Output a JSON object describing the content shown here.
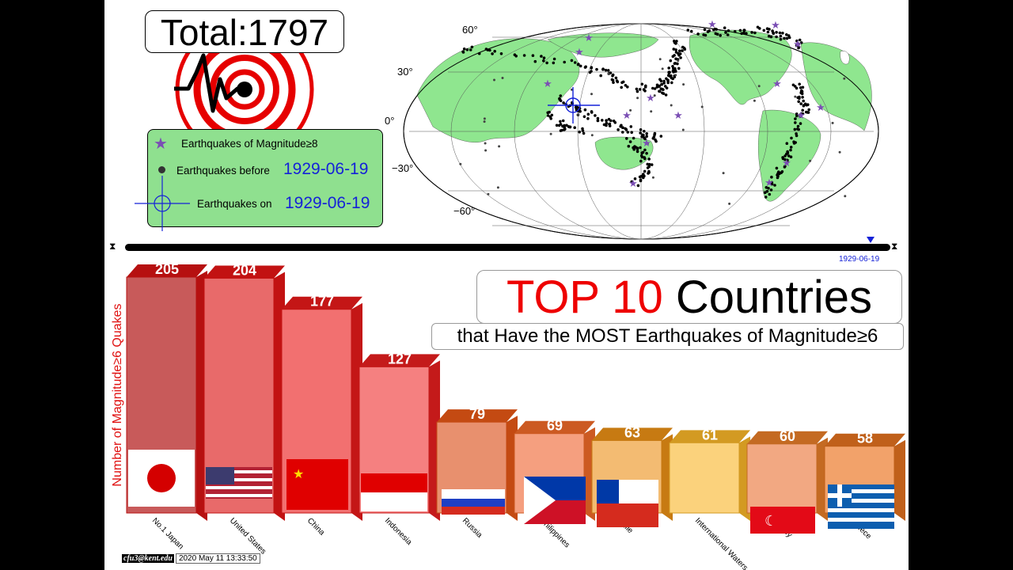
{
  "total": {
    "text": "Total:1797"
  },
  "legend": {
    "row1": "Earthquakes of Magnitude≥8",
    "row2": "Earthquakes before",
    "row2_date": "1929-06-19",
    "row3": "Earthquakes on",
    "row3_date": "1929-06-19"
  },
  "map": {
    "lat_labels": [
      "60°",
      "30°",
      "0°",
      "−30°",
      "−60°"
    ],
    "colors": {
      "land": "#8fe68f",
      "ocean": "#ffffff",
      "quake": "#000000",
      "big_quake": "#7b4fb4"
    }
  },
  "timeline": {
    "date": "1929-06-19",
    "progress": 0.974
  },
  "title": {
    "red": "TOP 10",
    "black": " Countries"
  },
  "subtitle": "that Have the MOST Earthquakes of Magnitude≥6",
  "credit": {
    "user": "cfu3@kent.edu",
    "stamp": "2020 May 11 13:33:50"
  },
  "chart_data": {
    "type": "bar",
    "ylabel": "Number of Magnitude≥6 Quakes",
    "categories": [
      "No.1 Japan",
      "United States",
      "China",
      "Indonesia",
      "Russia",
      "Philippines",
      "Chile",
      "International Waters",
      "Turkey",
      "Greece"
    ],
    "values": [
      205,
      204,
      177,
      127,
      79,
      69,
      63,
      61,
      60,
      58
    ],
    "colors": {
      "fronts": [
        "#c85a5a",
        "#e86a6a",
        "#f27070",
        "#f58080",
        "#e8906e",
        "#f59f7f",
        "#f3bb72",
        "#fbd27c",
        "#f2a882",
        "#f2a26a"
      ],
      "tops": [
        "#b61010",
        "#c21212",
        "#c41616",
        "#c41a1a",
        "#c44a12",
        "#cc5a22",
        "#c77a12",
        "#d39a22",
        "#c46a22",
        "#c0601a"
      ]
    }
  }
}
